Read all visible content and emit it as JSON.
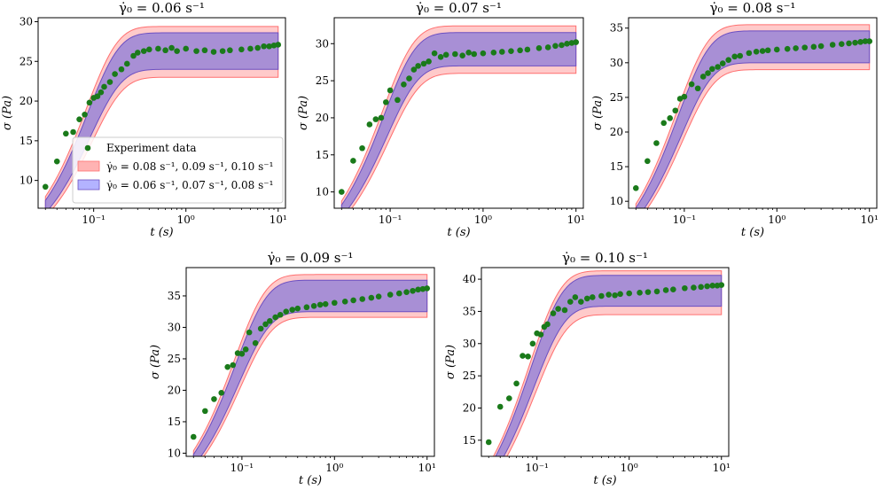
{
  "chart_data": [
    {
      "type": "scatter",
      "title": "γ̇₀ = 0.06 s⁻¹",
      "xlabel": "t (s)",
      "ylabel": "σ (Pa)",
      "xscale": "log",
      "xlim": [
        0.025,
        12
      ],
      "ylim": [
        6.5,
        30.5
      ],
      "yticks": [
        10,
        15,
        20,
        25,
        30
      ],
      "xtick_labels": [
        "10⁻¹",
        "10⁰",
        "10¹"
      ],
      "plateau": 26.5,
      "band_red": [
        23.0,
        29.4
      ],
      "band_blue": [
        24.0,
        28.6
      ],
      "data_x": [
        0.03,
        0.04,
        0.05,
        0.06,
        0.07,
        0.08,
        0.09,
        0.1,
        0.11,
        0.12,
        0.13,
        0.15,
        0.17,
        0.2,
        0.23,
        0.27,
        0.3,
        0.35,
        0.4,
        0.5,
        0.6,
        0.7,
        0.8,
        1.0,
        1.3,
        1.6,
        2.0,
        2.5,
        3.0,
        4.0,
        5.0,
        6.0,
        7.0,
        8.0,
        9.0,
        10.0
      ],
      "data_y": [
        9.2,
        12.4,
        15.9,
        16.1,
        17.7,
        18.3,
        19.8,
        20.4,
        20.6,
        21.1,
        21.8,
        22.4,
        23.4,
        24.0,
        24.7,
        25.7,
        26.1,
        26.3,
        26.5,
        26.6,
        26.4,
        26.7,
        26.3,
        26.6,
        26.3,
        26.4,
        26.2,
        26.3,
        26.4,
        26.5,
        26.6,
        26.7,
        26.9,
        26.9,
        27.0,
        27.1
      ],
      "legend": {
        "position": "center-left",
        "entries": [
          {
            "label": "Experiment data",
            "kind": "marker",
            "color": "#1a7a1a"
          },
          {
            "label": "γ̇₀ = 0.08 s⁻¹, 0.09 s⁻¹, 0.10 s⁻¹",
            "kind": "band",
            "color": "#ffb3b3"
          },
          {
            "label": "γ̇₀ = 0.06 s⁻¹, 0.07 s⁻¹, 0.08 s⁻¹",
            "kind": "band",
            "color": "#b3b3ff"
          }
        ]
      }
    },
    {
      "type": "scatter",
      "title": "γ̇₀ = 0.07 s⁻¹",
      "xlabel": "t (s)",
      "ylabel": "σ (Pa)",
      "xscale": "log",
      "xlim": [
        0.025,
        12
      ],
      "ylim": [
        7.8,
        33.5
      ],
      "yticks": [
        10,
        15,
        20,
        25,
        30
      ],
      "xtick_labels": [
        "10⁻¹",
        "10⁰",
        "10¹"
      ],
      "plateau": 29.2,
      "band_red": [
        26.0,
        32.4
      ],
      "band_blue": [
        27.0,
        31.5
      ],
      "data_x": [
        0.03,
        0.04,
        0.05,
        0.06,
        0.07,
        0.08,
        0.09,
        0.1,
        0.12,
        0.14,
        0.16,
        0.18,
        0.2,
        0.23,
        0.26,
        0.3,
        0.35,
        0.4,
        0.5,
        0.6,
        0.7,
        0.8,
        1.0,
        1.3,
        1.6,
        2.0,
        2.5,
        3.0,
        4.0,
        5.0,
        6.0,
        7.0,
        8.0,
        9.0,
        10.0
      ],
      "data_y": [
        10.0,
        14.2,
        15.9,
        19.1,
        19.8,
        20.0,
        22.1,
        23.7,
        22.4,
        24.5,
        25.3,
        26.5,
        27.0,
        27.3,
        27.6,
        28.7,
        28.2,
        28.5,
        28.6,
        28.4,
        28.8,
        28.6,
        28.7,
        28.8,
        28.9,
        29.0,
        29.1,
        29.2,
        29.4,
        29.5,
        29.7,
        29.8,
        30.0,
        30.1,
        30.2
      ]
    },
    {
      "type": "scatter",
      "title": "γ̇₀ = 0.08 s⁻¹",
      "xlabel": "t (s)",
      "ylabel": "σ (Pa)",
      "xscale": "log",
      "xlim": [
        0.025,
        12
      ],
      "ylim": [
        9,
        36.5
      ],
      "yticks": [
        10,
        15,
        20,
        25,
        30,
        35
      ],
      "xtick_labels": [
        "10⁻¹",
        "10⁰",
        "10¹"
      ],
      "plateau": 32.0,
      "band_red": [
        29.0,
        35.5
      ],
      "band_blue": [
        30.0,
        34.6
      ],
      "data_x": [
        0.03,
        0.04,
        0.05,
        0.06,
        0.07,
        0.08,
        0.09,
        0.1,
        0.12,
        0.14,
        0.16,
        0.18,
        0.2,
        0.23,
        0.26,
        0.3,
        0.35,
        0.4,
        0.5,
        0.6,
        0.7,
        0.8,
        1.0,
        1.3,
        1.6,
        2.0,
        2.5,
        3.0,
        4.0,
        5.0,
        6.0,
        7.0,
        8.0,
        9.0,
        10.0
      ],
      "data_y": [
        11.9,
        15.8,
        18.4,
        21.3,
        22.0,
        23.1,
        24.8,
        25.1,
        26.9,
        26.3,
        28.0,
        28.5,
        29.1,
        29.4,
        29.9,
        30.4,
        30.9,
        31.0,
        31.4,
        31.6,
        31.7,
        31.8,
        31.9,
        32.0,
        32.1,
        32.2,
        32.3,
        32.4,
        32.6,
        32.7,
        32.8,
        32.9,
        33.0,
        33.1,
        33.1
      ]
    },
    {
      "type": "scatter",
      "title": "γ̇₀ = 0.09 s⁻¹",
      "xlabel": "t (s)",
      "ylabel": "σ (Pa)",
      "xscale": "log",
      "xlim": [
        0.025,
        12
      ],
      "ylim": [
        9.5,
        39.5
      ],
      "yticks": [
        10,
        15,
        20,
        25,
        30,
        35
      ],
      "xtick_labels": [
        "10⁻¹",
        "10⁰",
        "10¹"
      ],
      "plateau": 34.8,
      "band_red": [
        31.6,
        38.4
      ],
      "band_blue": [
        32.5,
        37.5
      ],
      "data_x": [
        0.03,
        0.04,
        0.05,
        0.06,
        0.07,
        0.08,
        0.09,
        0.1,
        0.11,
        0.12,
        0.14,
        0.16,
        0.18,
        0.2,
        0.23,
        0.26,
        0.3,
        0.35,
        0.4,
        0.5,
        0.6,
        0.7,
        0.8,
        1.0,
        1.3,
        1.6,
        2.0,
        2.5,
        3.0,
        4.0,
        5.0,
        6.0,
        7.0,
        8.0,
        9.0,
        10.0
      ],
      "data_y": [
        12.6,
        16.7,
        18.6,
        19.6,
        23.7,
        24.0,
        25.9,
        25.8,
        26.5,
        29.2,
        27.5,
        29.8,
        30.5,
        31.0,
        31.6,
        32.0,
        32.5,
        32.8,
        33.0,
        33.2,
        33.4,
        33.6,
        33.7,
        33.9,
        34.1,
        34.3,
        34.5,
        34.7,
        34.9,
        35.2,
        35.4,
        35.6,
        35.8,
        36.0,
        36.1,
        36.2
      ]
    },
    {
      "type": "scatter",
      "title": "γ̇₀ = 0.10 s⁻¹",
      "xlabel": "t (s)",
      "ylabel": "σ (Pa)",
      "xscale": "log",
      "xlim": [
        0.025,
        12
      ],
      "ylim": [
        12.5,
        41.8
      ],
      "yticks": [
        15,
        20,
        25,
        30,
        35,
        40
      ],
      "xtick_labels": [
        "10⁻¹",
        "10⁰",
        "10¹"
      ],
      "plateau": 37.8,
      "band_red": [
        34.5,
        41.3
      ],
      "band_blue": [
        35.8,
        40.6
      ],
      "data_x": [
        0.03,
        0.04,
        0.05,
        0.06,
        0.07,
        0.08,
        0.09,
        0.1,
        0.11,
        0.12,
        0.13,
        0.15,
        0.17,
        0.2,
        0.23,
        0.26,
        0.3,
        0.35,
        0.4,
        0.5,
        0.6,
        0.7,
        0.8,
        1.0,
        1.3,
        1.6,
        2.0,
        2.5,
        3.0,
        4.0,
        5.0,
        6.0,
        7.0,
        8.0,
        9.0,
        10.0
      ],
      "data_y": [
        14.7,
        20.2,
        21.5,
        23.8,
        28.1,
        28.0,
        30.0,
        31.6,
        31.4,
        32.6,
        33.0,
        34.7,
        35.4,
        35.2,
        36.5,
        37.2,
        36.5,
        37.0,
        37.2,
        37.4,
        37.6,
        37.5,
        37.7,
        37.8,
        37.9,
        38.0,
        38.1,
        38.3,
        38.4,
        38.6,
        38.7,
        38.8,
        38.9,
        39.0,
        39.0,
        39.1
      ]
    }
  ],
  "colors": {
    "red_band_fill": "#ff9e9e",
    "red_band_edge": "#ff6f6f",
    "blue_band_fill": "#8f7fd8",
    "blue_band_edge": "#6b4fc2",
    "marker": "#1a7a1a"
  }
}
